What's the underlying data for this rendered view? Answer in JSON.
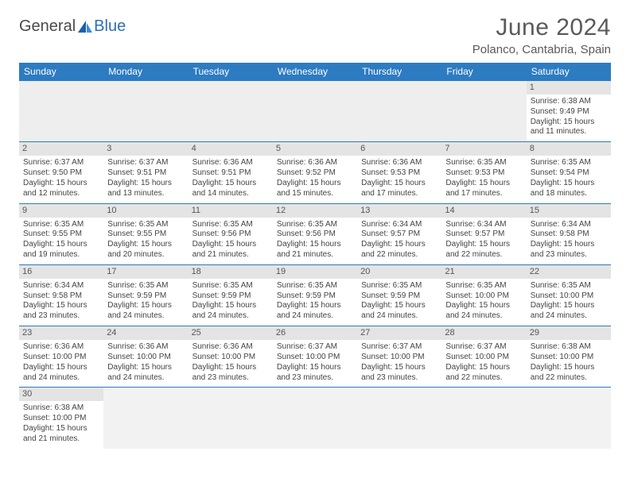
{
  "brand": {
    "part1": "General",
    "part2": "Blue"
  },
  "title": "June 2024",
  "location": "Polanco, Cantabria, Spain",
  "colors": {
    "header_bg": "#2d7bc1",
    "header_text": "#ffffff",
    "daynum_bg": "#e4e4e4",
    "empty_bg": "#eeeeee",
    "divider": "#2d7bc1",
    "brand_blue": "#2d6fb5",
    "text": "#444444"
  },
  "typography": {
    "title_fontsize": 30,
    "location_fontsize": 15,
    "weekday_fontsize": 12,
    "daynum_fontsize": 11,
    "body_fontsize": 10
  },
  "weekdays": [
    "Sunday",
    "Monday",
    "Tuesday",
    "Wednesday",
    "Thursday",
    "Friday",
    "Saturday"
  ],
  "weeks": [
    [
      null,
      null,
      null,
      null,
      null,
      null,
      {
        "n": "1",
        "sr": "Sunrise: 6:38 AM",
        "ss": "Sunset: 9:49 PM",
        "d1": "Daylight: 15 hours",
        "d2": "and 11 minutes."
      }
    ],
    [
      {
        "n": "2",
        "sr": "Sunrise: 6:37 AM",
        "ss": "Sunset: 9:50 PM",
        "d1": "Daylight: 15 hours",
        "d2": "and 12 minutes."
      },
      {
        "n": "3",
        "sr": "Sunrise: 6:37 AM",
        "ss": "Sunset: 9:51 PM",
        "d1": "Daylight: 15 hours",
        "d2": "and 13 minutes."
      },
      {
        "n": "4",
        "sr": "Sunrise: 6:36 AM",
        "ss": "Sunset: 9:51 PM",
        "d1": "Daylight: 15 hours",
        "d2": "and 14 minutes."
      },
      {
        "n": "5",
        "sr": "Sunrise: 6:36 AM",
        "ss": "Sunset: 9:52 PM",
        "d1": "Daylight: 15 hours",
        "d2": "and 15 minutes."
      },
      {
        "n": "6",
        "sr": "Sunrise: 6:36 AM",
        "ss": "Sunset: 9:53 PM",
        "d1": "Daylight: 15 hours",
        "d2": "and 17 minutes."
      },
      {
        "n": "7",
        "sr": "Sunrise: 6:35 AM",
        "ss": "Sunset: 9:53 PM",
        "d1": "Daylight: 15 hours",
        "d2": "and 17 minutes."
      },
      {
        "n": "8",
        "sr": "Sunrise: 6:35 AM",
        "ss": "Sunset: 9:54 PM",
        "d1": "Daylight: 15 hours",
        "d2": "and 18 minutes."
      }
    ],
    [
      {
        "n": "9",
        "sr": "Sunrise: 6:35 AM",
        "ss": "Sunset: 9:55 PM",
        "d1": "Daylight: 15 hours",
        "d2": "and 19 minutes."
      },
      {
        "n": "10",
        "sr": "Sunrise: 6:35 AM",
        "ss": "Sunset: 9:55 PM",
        "d1": "Daylight: 15 hours",
        "d2": "and 20 minutes."
      },
      {
        "n": "11",
        "sr": "Sunrise: 6:35 AM",
        "ss": "Sunset: 9:56 PM",
        "d1": "Daylight: 15 hours",
        "d2": "and 21 minutes."
      },
      {
        "n": "12",
        "sr": "Sunrise: 6:35 AM",
        "ss": "Sunset: 9:56 PM",
        "d1": "Daylight: 15 hours",
        "d2": "and 21 minutes."
      },
      {
        "n": "13",
        "sr": "Sunrise: 6:34 AM",
        "ss": "Sunset: 9:57 PM",
        "d1": "Daylight: 15 hours",
        "d2": "and 22 minutes."
      },
      {
        "n": "14",
        "sr": "Sunrise: 6:34 AM",
        "ss": "Sunset: 9:57 PM",
        "d1": "Daylight: 15 hours",
        "d2": "and 22 minutes."
      },
      {
        "n": "15",
        "sr": "Sunrise: 6:34 AM",
        "ss": "Sunset: 9:58 PM",
        "d1": "Daylight: 15 hours",
        "d2": "and 23 minutes."
      }
    ],
    [
      {
        "n": "16",
        "sr": "Sunrise: 6:34 AM",
        "ss": "Sunset: 9:58 PM",
        "d1": "Daylight: 15 hours",
        "d2": "and 23 minutes."
      },
      {
        "n": "17",
        "sr": "Sunrise: 6:35 AM",
        "ss": "Sunset: 9:59 PM",
        "d1": "Daylight: 15 hours",
        "d2": "and 24 minutes."
      },
      {
        "n": "18",
        "sr": "Sunrise: 6:35 AM",
        "ss": "Sunset: 9:59 PM",
        "d1": "Daylight: 15 hours",
        "d2": "and 24 minutes."
      },
      {
        "n": "19",
        "sr": "Sunrise: 6:35 AM",
        "ss": "Sunset: 9:59 PM",
        "d1": "Daylight: 15 hours",
        "d2": "and 24 minutes."
      },
      {
        "n": "20",
        "sr": "Sunrise: 6:35 AM",
        "ss": "Sunset: 9:59 PM",
        "d1": "Daylight: 15 hours",
        "d2": "and 24 minutes."
      },
      {
        "n": "21",
        "sr": "Sunrise: 6:35 AM",
        "ss": "Sunset: 10:00 PM",
        "d1": "Daylight: 15 hours",
        "d2": "and 24 minutes."
      },
      {
        "n": "22",
        "sr": "Sunrise: 6:35 AM",
        "ss": "Sunset: 10:00 PM",
        "d1": "Daylight: 15 hours",
        "d2": "and 24 minutes."
      }
    ],
    [
      {
        "n": "23",
        "sr": "Sunrise: 6:36 AM",
        "ss": "Sunset: 10:00 PM",
        "d1": "Daylight: 15 hours",
        "d2": "and 24 minutes."
      },
      {
        "n": "24",
        "sr": "Sunrise: 6:36 AM",
        "ss": "Sunset: 10:00 PM",
        "d1": "Daylight: 15 hours",
        "d2": "and 24 minutes."
      },
      {
        "n": "25",
        "sr": "Sunrise: 6:36 AM",
        "ss": "Sunset: 10:00 PM",
        "d1": "Daylight: 15 hours",
        "d2": "and 23 minutes."
      },
      {
        "n": "26",
        "sr": "Sunrise: 6:37 AM",
        "ss": "Sunset: 10:00 PM",
        "d1": "Daylight: 15 hours",
        "d2": "and 23 minutes."
      },
      {
        "n": "27",
        "sr": "Sunrise: 6:37 AM",
        "ss": "Sunset: 10:00 PM",
        "d1": "Daylight: 15 hours",
        "d2": "and 23 minutes."
      },
      {
        "n": "28",
        "sr": "Sunrise: 6:37 AM",
        "ss": "Sunset: 10:00 PM",
        "d1": "Daylight: 15 hours",
        "d2": "and 22 minutes."
      },
      {
        "n": "29",
        "sr": "Sunrise: 6:38 AM",
        "ss": "Sunset: 10:00 PM",
        "d1": "Daylight: 15 hours",
        "d2": "and 22 minutes."
      }
    ],
    [
      {
        "n": "30",
        "sr": "Sunrise: 6:38 AM",
        "ss": "Sunset: 10:00 PM",
        "d1": "Daylight: 15 hours",
        "d2": "and 21 minutes."
      },
      null,
      null,
      null,
      null,
      null,
      null
    ]
  ]
}
